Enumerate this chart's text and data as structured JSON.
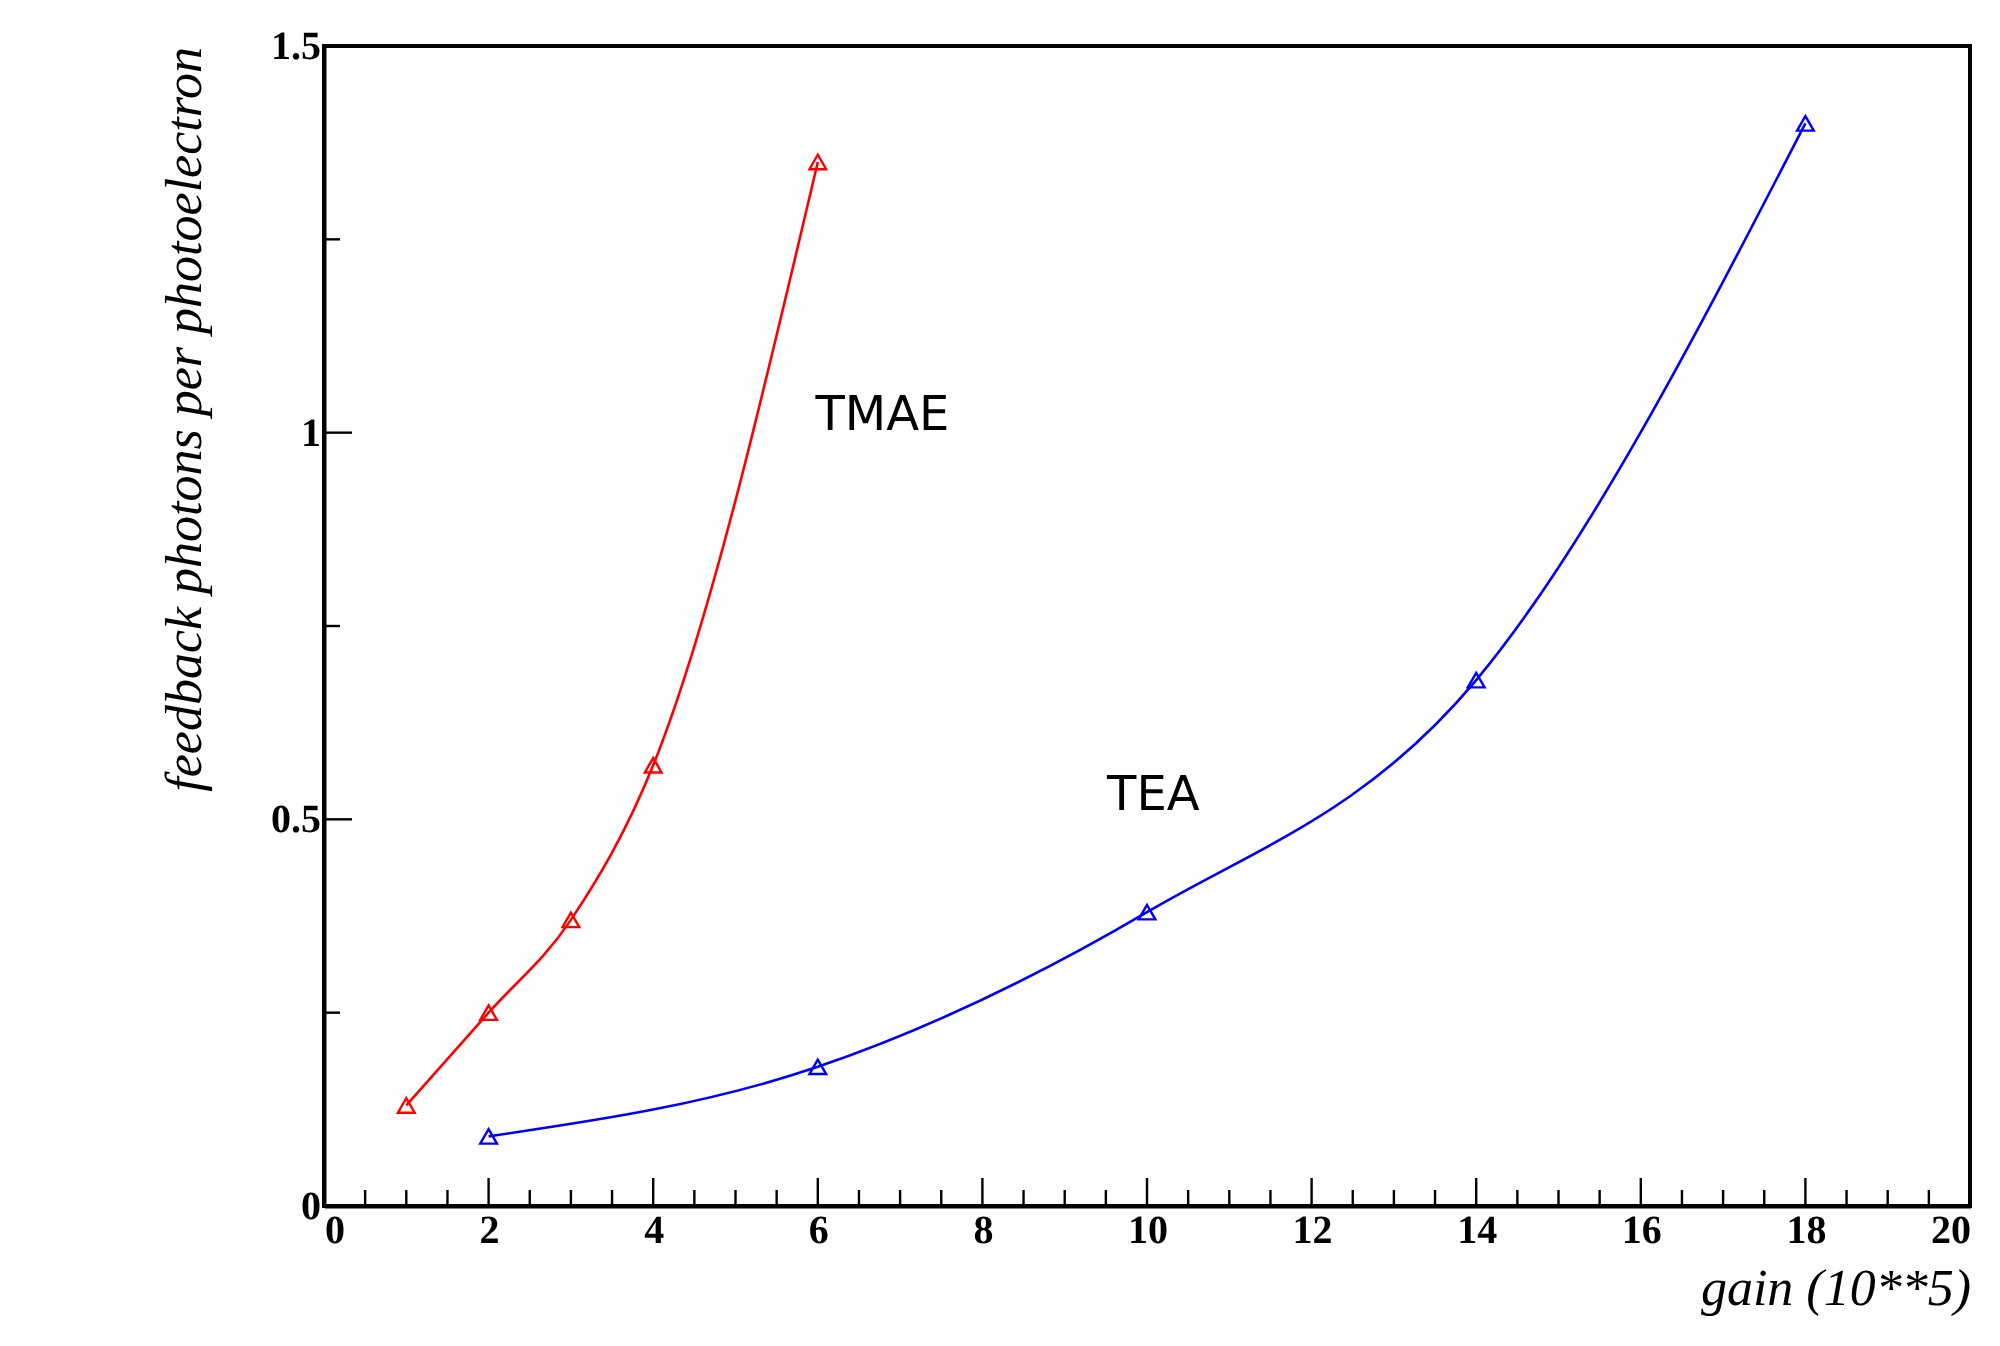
{
  "chart_data": {
    "type": "line",
    "xlabel": "gain (10**5)",
    "ylabel": "feedback photons per photoelectron",
    "series": [
      {
        "name": "TMAE",
        "color": "#ff0000",
        "x": [
          1,
          2,
          3,
          4,
          6
        ],
        "values": [
          0.13,
          0.25,
          0.37,
          0.57,
          1.35
        ]
      },
      {
        "name": "TEA",
        "color": "#0000ff",
        "x": [
          2,
          6,
          10,
          14,
          18
        ],
        "values": [
          0.09,
          0.18,
          0.38,
          0.68,
          1.4
        ]
      }
    ],
    "marker": "triangle",
    "line_style": "solid",
    "grid": false,
    "xlim": [
      0,
      20
    ],
    "ylim": [
      0,
      1.5
    ],
    "xticks": [
      0,
      {
        "value": 0.5,
        "label": null
      },
      {
        "value": 1,
        "label": null
      },
      {
        "value": 1.5,
        "label": null
      },
      2,
      {
        "value": 2.5,
        "label": null
      },
      {
        "value": 3,
        "label": null
      },
      {
        "value": 3.5,
        "label": null
      },
      4,
      {
        "value": 4.5,
        "label": null
      },
      {
        "value": 5,
        "label": null
      },
      {
        "value": 5.5,
        "label": null
      },
      6,
      {
        "value": 6.5,
        "label": null
      },
      {
        "value": 7,
        "label": null
      },
      {
        "value": 7.5,
        "label": null
      },
      8,
      {
        "value": 8.5,
        "label": null
      },
      {
        "value": 9,
        "label": null
      },
      {
        "value": 9.5,
        "label": null
      },
      10,
      {
        "value": 10.5,
        "label": null
      },
      {
        "value": 11,
        "label": null
      },
      {
        "value": 11.5,
        "label": null
      },
      12,
      {
        "value": 12.5,
        "label": null
      },
      {
        "value": 13,
        "label": null
      },
      {
        "value": 13.5,
        "label": null
      },
      14,
      {
        "value": 14.5,
        "label": null
      },
      {
        "value": 15,
        "label": null
      },
      {
        "value": 15.5,
        "label": null
      },
      16,
      {
        "value": 16.5,
        "label": null
      },
      {
        "value": 17,
        "label": null
      },
      {
        "value": 17.5,
        "label": null
      },
      18,
      {
        "value": 18.5,
        "label": null
      },
      {
        "value": 19,
        "label": null
      },
      {
        "value": 19.5,
        "label": null
      },
      20
    ],
    "yticks": [
      0,
      {
        "value": 0.25,
        "label": null
      },
      0.5,
      {
        "value": 0.75,
        "label": null
      },
      1,
      {
        "value": 1.25,
        "label": null
      },
      1.5
    ]
  }
}
